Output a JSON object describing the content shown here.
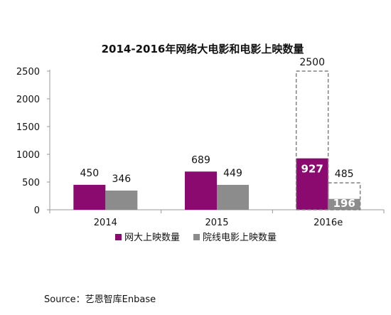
{
  "chart_data": {
    "type": "bar",
    "title": "2014-2016年网络大电影和电影上映数量",
    "categories": [
      "2014",
      "2015",
      "2016e"
    ],
    "series": [
      {
        "name": "网大上映数量",
        "color": "#8B0A6F",
        "values": [
          450,
          689,
          927
        ],
        "labels": [
          "450",
          "689",
          "927"
        ]
      },
      {
        "name": "院线电影上映数量",
        "color": "#8C8C8C",
        "values": [
          346,
          449,
          196
        ],
        "labels": [
          "346",
          "449",
          "196"
        ]
      }
    ],
    "projected": [
      {
        "category": "2016e",
        "series": "网大上映数量",
        "value": 2500,
        "label": "2500"
      },
      {
        "category": "2016e",
        "series": "院线电影上映数量",
        "value": 485,
        "label": "485"
      }
    ],
    "y_ticks": [
      "0",
      "500",
      "1000",
      "1500",
      "2000",
      "2500"
    ],
    "ylim": [
      0,
      2500
    ],
    "legend_position": "bottom",
    "grid": false
  },
  "source": "Source：艺恩智库Enbase"
}
